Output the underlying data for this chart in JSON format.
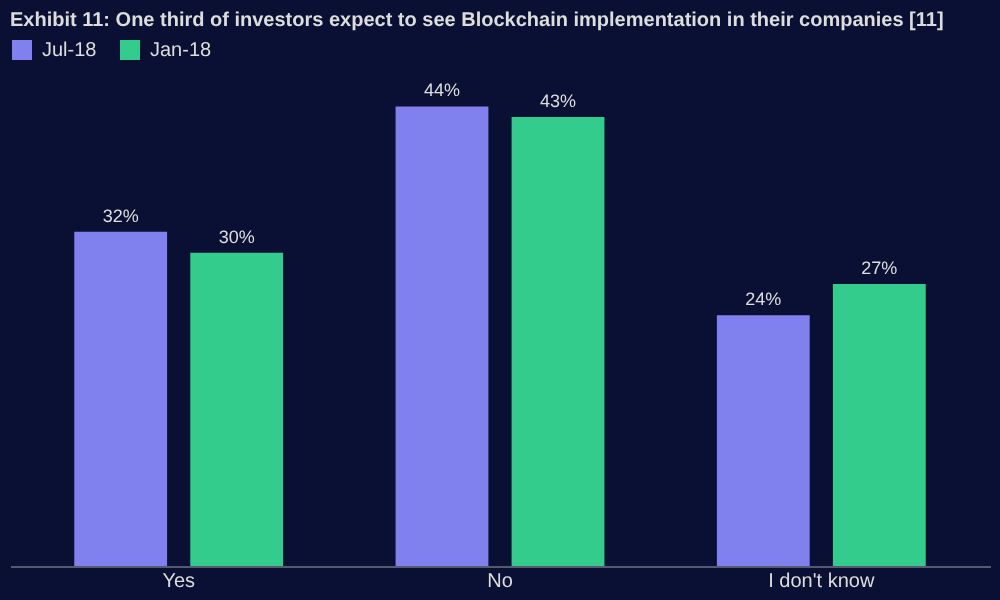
{
  "chart_data": {
    "type": "bar",
    "title": "Exhibit 11: One third of investors expect to see Blockchain implementation in their companies [11]",
    "categories": [
      "Yes",
      "No",
      "I don't know"
    ],
    "series": [
      {
        "name": "Jul-18",
        "color": "#8080ee",
        "values": [
          32,
          44,
          24
        ],
        "value_labels": [
          "32%",
          "44%",
          "24%"
        ]
      },
      {
        "name": "Jan-18",
        "color": "#33cc8c",
        "values": [
          30,
          43,
          27
        ],
        "value_labels": [
          "30%",
          "43%",
          "27%"
        ]
      }
    ],
    "legend": "top",
    "grid": false
  }
}
